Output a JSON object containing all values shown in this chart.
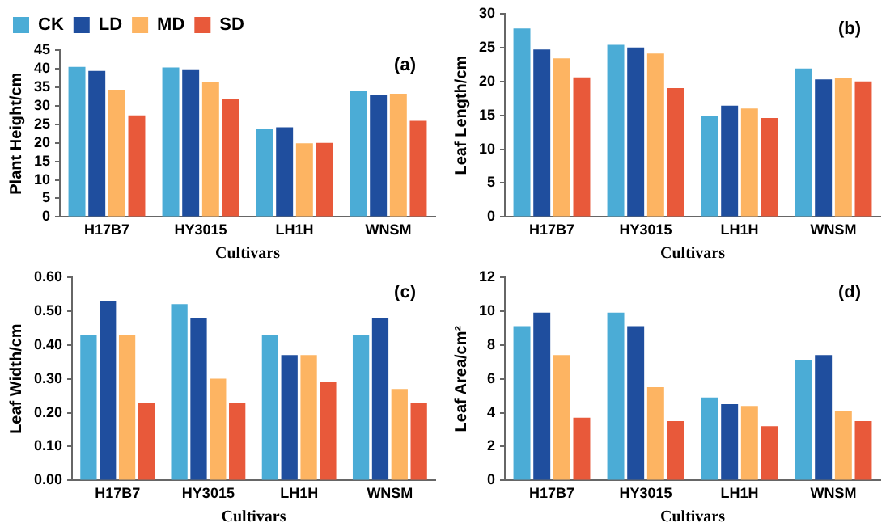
{
  "chart_data": [
    {
      "type": "bar",
      "ylabel": "Plant Height/cm",
      "xlabel": "Cultivars",
      "annotations": [
        "(a)"
      ],
      "categories": [
        "H17B7",
        "HY3015",
        "LH1H",
        "WNSM"
      ],
      "ylim": [
        0,
        45
      ],
      "yticks": [
        0,
        5,
        10,
        15,
        20,
        25,
        30,
        35,
        40,
        45
      ],
      "grid": false,
      "legend": "top left",
      "series": [
        {
          "name": "CK",
          "color": "#4bacd6",
          "values": [
            40.5,
            40.3,
            23.7,
            34.1
          ]
        },
        {
          "name": "LD",
          "color": "#1f4e9e",
          "values": [
            39.4,
            39.8,
            24.2,
            32.8
          ]
        },
        {
          "name": "MD",
          "color": "#fdb462",
          "values": [
            34.3,
            36.5,
            19.9,
            33.2
          ]
        },
        {
          "name": "SD",
          "color": "#e8593a",
          "values": [
            27.4,
            31.8,
            20.0,
            25.9
          ]
        }
      ]
    },
    {
      "type": "bar",
      "ylabel": "Leaf Length/cm",
      "xlabel": "Cultivars",
      "annotations": [
        "(b)"
      ],
      "categories": [
        "H17B7",
        "HY3015",
        "LH1H",
        "WNSM"
      ],
      "ylim": [
        0,
        30
      ],
      "yticks": [
        0,
        5,
        10,
        15,
        20,
        25,
        30
      ],
      "grid": false,
      "legend": false,
      "series": [
        {
          "color": "#4bacd6",
          "values": [
            27.8,
            25.4,
            14.9,
            21.9
          ]
        },
        {
          "color": "#1f4e9e",
          "values": [
            24.7,
            25.0,
            16.4,
            20.3
          ]
        },
        {
          "color": "#fdb462",
          "values": [
            23.4,
            24.1,
            16.0,
            20.5
          ]
        },
        {
          "color": "#e8593a",
          "values": [
            20.6,
            19.0,
            14.6,
            20.0
          ]
        }
      ]
    },
    {
      "type": "bar",
      "ylabel": "Leaf Width/cm",
      "xlabel": "Cultivars",
      "annotations": [
        "(c)"
      ],
      "categories": [
        "H17B7",
        "HY3015",
        "LH1H",
        "WNSM"
      ],
      "ylim": [
        0,
        0.6
      ],
      "yticks": [
        {
          "value": 0,
          "label": "0.00"
        },
        {
          "value": 0.1,
          "label": "0.10"
        },
        {
          "value": 0.2,
          "label": "0.20"
        },
        {
          "value": 0.3,
          "label": "0.30"
        },
        {
          "value": 0.4,
          "label": "0.40"
        },
        {
          "value": 0.5,
          "label": "0.50"
        },
        {
          "value": 0.6,
          "label": "0.60"
        }
      ],
      "grid": false,
      "legend": false,
      "series": [
        {
          "color": "#4bacd6",
          "values": [
            0.43,
            0.52,
            0.43,
            0.43
          ]
        },
        {
          "color": "#1f4e9e",
          "values": [
            0.53,
            0.48,
            0.37,
            0.48
          ]
        },
        {
          "color": "#fdb462",
          "values": [
            0.43,
            0.3,
            0.37,
            0.27
          ]
        },
        {
          "color": "#e8593a",
          "values": [
            0.23,
            0.23,
            0.29,
            0.23
          ]
        }
      ]
    },
    {
      "type": "bar",
      "ylabel": "Leaf Area/cm²",
      "xlabel": "Cultivars",
      "annotations": [
        "(d)"
      ],
      "categories": [
        "H17B7",
        "HY3015",
        "LH1H",
        "WNSM"
      ],
      "ylim": [
        0,
        12
      ],
      "yticks": [
        0,
        2,
        4,
        6,
        8,
        10,
        12
      ],
      "grid": false,
      "legend": false,
      "series": [
        {
          "color": "#4bacd6",
          "values": [
            9.1,
            9.9,
            4.9,
            7.1
          ]
        },
        {
          "color": "#1f4e9e",
          "values": [
            9.9,
            9.1,
            4.5,
            7.4
          ]
        },
        {
          "color": "#fdb462",
          "values": [
            7.4,
            5.5,
            4.4,
            4.1
          ]
        },
        {
          "color": "#e8593a",
          "values": [
            3.7,
            3.5,
            3.2,
            3.5
          ]
        }
      ]
    }
  ]
}
